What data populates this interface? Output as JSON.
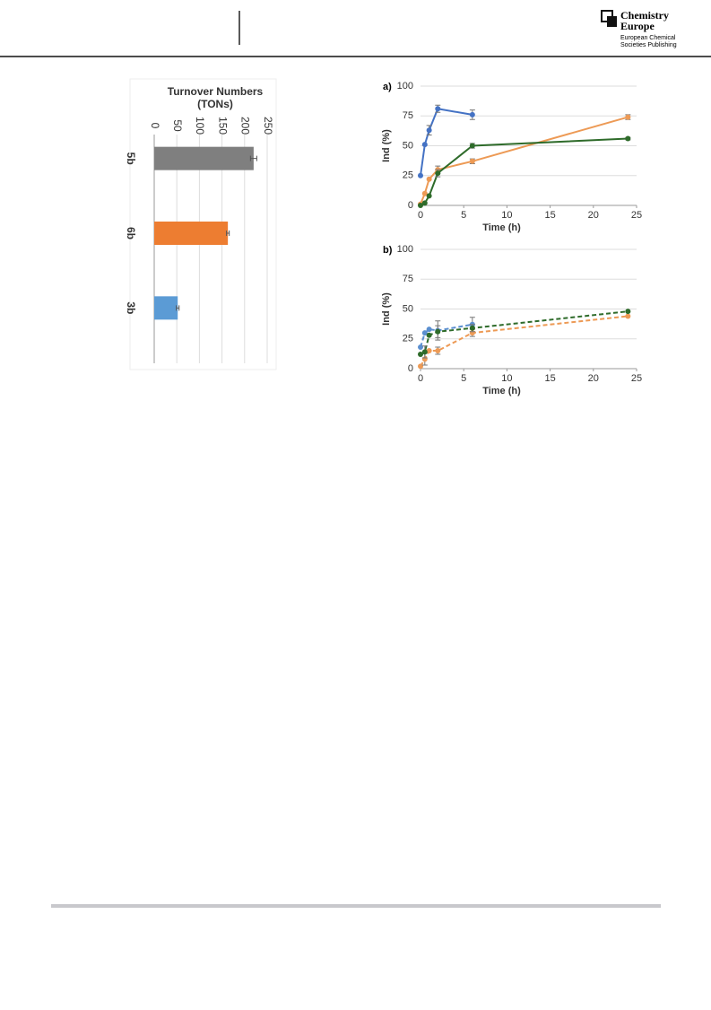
{
  "header": {
    "brand": "Chemistry",
    "brand_line2": "Europe",
    "publisher": "European Chemical",
    "publisher_line2": "Societies Publishing"
  },
  "chart_data": [
    {
      "type": "bar",
      "title": "Turnover Numbers",
      "subtitle": "(TONs)",
      "orientation": "horizontal",
      "categories": [
        "5b",
        "6b",
        "3b"
      ],
      "values": [
        220,
        163,
        52
      ],
      "errors": [
        7,
        3,
        3
      ],
      "colors": [
        "#7f7f7f",
        "#ed7d31",
        "#5b9bd5"
      ],
      "xlim": [
        0,
        250
      ],
      "xticks": [
        0,
        50,
        100,
        150,
        200,
        250
      ],
      "grid": true
    },
    {
      "type": "line",
      "panel": "a)",
      "xlabel": "Time (h)",
      "ylabel": "Ind (%)",
      "line_style": "solid",
      "x": [
        0,
        0.5,
        1,
        2,
        6,
        24
      ],
      "xlim": [
        0,
        25
      ],
      "xticks": [
        0,
        5,
        10,
        15,
        20,
        25
      ],
      "ylim": [
        0,
        100
      ],
      "yticks": [
        0,
        25,
        50,
        75,
        100
      ],
      "grid": true,
      "series": [
        {
          "color": "#4472c4",
          "values": [
            25,
            51,
            63,
            81,
            76,
            null
          ],
          "errors": [
            null,
            null,
            4,
            3,
            4,
            null
          ]
        },
        {
          "color": "#ed9a55",
          "values": [
            1,
            10,
            22,
            30,
            37,
            74
          ],
          "errors": [
            null,
            null,
            null,
            3,
            2,
            2
          ]
        },
        {
          "color": "#2e6b2a",
          "values": [
            0,
            2,
            8,
            27,
            50,
            56
          ],
          "errors": [
            null,
            null,
            null,
            3,
            2,
            1
          ]
        }
      ]
    },
    {
      "type": "line",
      "panel": "b)",
      "xlabel": "Time (h)",
      "ylabel": "Ind (%)",
      "line_style": "dashed",
      "x": [
        0,
        0.5,
        1,
        2,
        6,
        24
      ],
      "xlim": [
        0,
        25
      ],
      "xticks": [
        0,
        5,
        10,
        15,
        20,
        25
      ],
      "ylim": [
        0,
        100
      ],
      "yticks": [
        0,
        25,
        50,
        75,
        100
      ],
      "grid": true,
      "series": [
        {
          "color": "#5b8fd0",
          "values": [
            18,
            30,
            33,
            32,
            37,
            null
          ],
          "errors": [
            null,
            null,
            null,
            8,
            6,
            null
          ]
        },
        {
          "color": "#ed9a55",
          "values": [
            2,
            8,
            15,
            15,
            30,
            44
          ],
          "errors": [
            null,
            5,
            null,
            3,
            3,
            null
          ]
        },
        {
          "color": "#2e6b2a",
          "values": [
            12,
            14,
            28,
            31,
            34,
            48
          ],
          "errors": [
            null,
            5,
            null,
            5,
            3,
            null
          ]
        }
      ]
    }
  ]
}
